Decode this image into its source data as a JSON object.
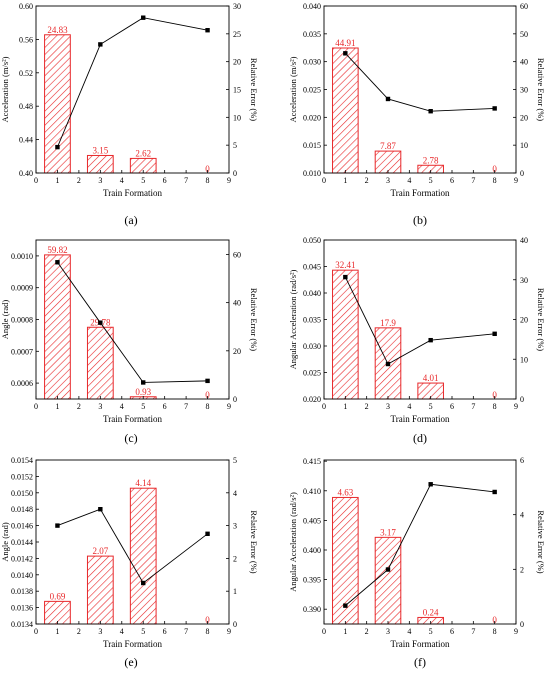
{
  "colors": {
    "bar_edge": "#e8282a",
    "bar_hatch": "#e8282a",
    "bar_label": "#e8282a",
    "line": "#000000",
    "axis": "#000000"
  },
  "chart_data": [
    {
      "panel": "(a)",
      "type": "bar",
      "xlabel": "Train Formation",
      "ylabel": "Acceleration (m/s²)",
      "y2label": "Relative Error (%)",
      "xlim": [
        0,
        9
      ],
      "xticks": [
        "0",
        "1",
        "2",
        "3",
        "4",
        "5",
        "6",
        "7",
        "8",
        "9"
      ],
      "ylim": [
        0.4,
        0.6
      ],
      "yticks": [
        "0.40",
        "0.44",
        "0.48",
        "0.52",
        "0.56",
        "0.60"
      ],
      "y2lim": [
        0,
        30
      ],
      "y2ticks": [
        "0",
        "5",
        "10",
        "15",
        "20",
        "25",
        "30"
      ],
      "x": [
        1,
        3,
        5,
        8
      ],
      "bars": [
        24.83,
        3.15,
        2.62,
        0
      ],
      "bar_labels": [
        "24.83",
        "3.15",
        "2.62",
        "0"
      ],
      "line": [
        0.431,
        0.554,
        0.586,
        0.571
      ]
    },
    {
      "panel": "(b)",
      "type": "bar",
      "xlabel": "Train Formation",
      "ylabel": "Acceleration (m/s²)",
      "y2label": "Relative Error (%)",
      "xlim": [
        0,
        9
      ],
      "xticks": [
        "0",
        "1",
        "2",
        "3",
        "4",
        "5",
        "6",
        "7",
        "8",
        "9"
      ],
      "ylim": [
        0.01,
        0.04
      ],
      "yticks": [
        "0.010",
        "0.015",
        "0.020",
        "0.025",
        "0.030",
        "0.035",
        "0.040"
      ],
      "y2lim": [
        0,
        60
      ],
      "y2ticks": [
        "0",
        "10",
        "20",
        "30",
        "40",
        "50",
        "60"
      ],
      "x": [
        1,
        3,
        5,
        8
      ],
      "bars": [
        44.91,
        7.87,
        2.78,
        0
      ],
      "bar_labels": [
        "44.91",
        "7.87",
        "2.78",
        "0"
      ],
      "line": [
        0.0315,
        0.0233,
        0.0211,
        0.0216
      ]
    },
    {
      "panel": "(c)",
      "type": "bar",
      "xlabel": "Train Formation",
      "ylabel": "Angle (rad)",
      "y2label": "Relative Error (%)",
      "xlim": [
        0,
        9
      ],
      "xticks": [
        "0",
        "1",
        "2",
        "3",
        "4",
        "5",
        "6",
        "7",
        "8",
        "9"
      ],
      "ylim": [
        0.00055,
        0.00105
      ],
      "yticks": [
        "0.0006",
        "0.0007",
        "0.0008",
        "0.0009",
        "0.0010"
      ],
      "y2lim": [
        0,
        66
      ],
      "y2ticks": [
        "0",
        "20",
        "40",
        "60"
      ],
      "x": [
        1,
        3,
        5,
        8
      ],
      "bars": [
        59.82,
        29.78,
        0.93,
        0
      ],
      "bar_labels": [
        "59.82",
        "29.78",
        "0.93",
        "0"
      ],
      "line": [
        0.00098,
        0.00079,
        0.000602,
        0.000607
      ]
    },
    {
      "panel": "(d)",
      "type": "bar",
      "xlabel": "Train Formation",
      "ylabel": "Angular Acceleration (rad/s²)",
      "y2label": "Relative Error (%)",
      "xlim": [
        0,
        9
      ],
      "xticks": [
        "0",
        "1",
        "2",
        "3",
        "4",
        "5",
        "6",
        "7",
        "8",
        "9"
      ],
      "ylim": [
        0.02,
        0.05
      ],
      "yticks": [
        "0.020",
        "0.025",
        "0.030",
        "0.035",
        "0.040",
        "0.045",
        "0.050"
      ],
      "y2lim": [
        0,
        40
      ],
      "y2ticks": [
        "0",
        "10",
        "20",
        "30",
        "40"
      ],
      "x": [
        1,
        3,
        5,
        8
      ],
      "bars": [
        32.41,
        17.9,
        4.01,
        0
      ],
      "bar_labels": [
        "32.41",
        "17.9",
        "4.01",
        "0"
      ],
      "line": [
        0.043,
        0.0266,
        0.0311,
        0.0323
      ]
    },
    {
      "panel": "(e)",
      "type": "bar",
      "xlabel": "Train Formation",
      "ylabel": "Angle (rad)",
      "y2label": "Relative Error (%)",
      "xlim": [
        0,
        9
      ],
      "xticks": [
        "0",
        "1",
        "2",
        "3",
        "4",
        "5",
        "6",
        "7",
        "8",
        "9"
      ],
      "ylim": [
        0.0134,
        0.0154
      ],
      "yticks": [
        "0.0134",
        "0.0136",
        "0.0138",
        "0.0140",
        "0.0142",
        "0.0144",
        "0.0146",
        "0.0148",
        "0.0150",
        "0.0152",
        "0.0154"
      ],
      "y2lim": [
        0,
        5
      ],
      "y2ticks": [
        "0",
        "1",
        "2",
        "3",
        "4",
        "5"
      ],
      "x": [
        1,
        3,
        5,
        8
      ],
      "bars": [
        0.69,
        2.07,
        4.14,
        0
      ],
      "bar_labels": [
        "0.69",
        "2.07",
        "4.14",
        "0"
      ],
      "line": [
        0.0146,
        0.0148,
        0.0139,
        0.0145
      ]
    },
    {
      "panel": "(f)",
      "type": "bar",
      "xlabel": "Train Formation",
      "ylabel": "Angular Acceleration (rad/s²)",
      "y2label": "Relative Error (%)",
      "xlim": [
        0,
        9
      ],
      "xticks": [
        "0",
        "1",
        "2",
        "3",
        "4",
        "5",
        "6",
        "7",
        "8",
        "9"
      ],
      "ylim": [
        0.3875,
        0.4152
      ],
      "yticks": [
        "0.390",
        "0.395",
        "0.400",
        "0.405",
        "0.410",
        "0.415"
      ],
      "y2lim": [
        0,
        6
      ],
      "y2ticks": [
        "0",
        "2",
        "4",
        "6"
      ],
      "x": [
        1,
        3,
        5,
        8
      ],
      "bars": [
        4.63,
        3.17,
        0.24,
        0
      ],
      "bar_labels": [
        "4.63",
        "3.17",
        "0.24",
        "0"
      ],
      "line": [
        0.3906,
        0.3967,
        0.4111,
        0.4098
      ]
    }
  ]
}
